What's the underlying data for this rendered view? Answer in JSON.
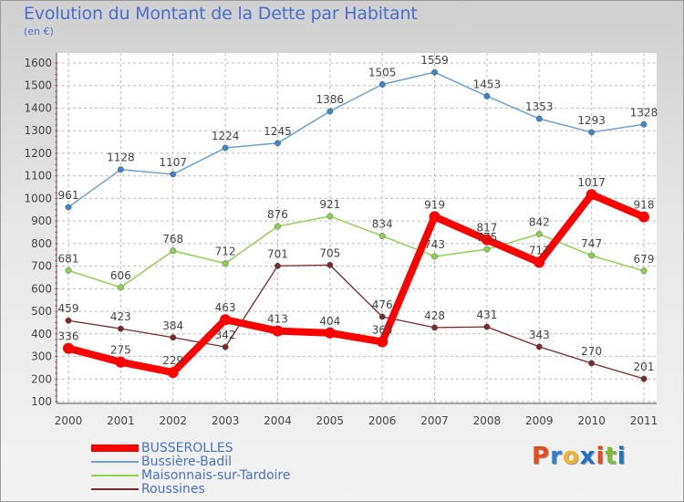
{
  "chart_data": {
    "type": "line",
    "title": "Evolution du Montant de la Dette par Habitant",
    "subtitle": "(en €)",
    "categories": [
      "2000",
      "2001",
      "2002",
      "2003",
      "2004",
      "2005",
      "2006",
      "2007",
      "2008",
      "2009",
      "2010",
      "2011"
    ],
    "yticks": [
      100,
      200,
      300,
      400,
      500,
      600,
      700,
      800,
      900,
      1000,
      1100,
      1200,
      1300,
      1400,
      1500,
      1600
    ],
    "ylim": [
      100,
      1600
    ],
    "grid": true,
    "legend_position": "bottom",
    "series": [
      {
        "name": "BUSSEROLLES",
        "color": "#ff0000",
        "width": 8,
        "marker_color": "#ff0000",
        "values": [
          336,
          275,
          229,
          463,
          413,
          404,
          365,
          919,
          817,
          717,
          1017,
          918
        ]
      },
      {
        "name": "Bussière-Badil",
        "color": "#6e9fd3",
        "width": 1.5,
        "marker_color": "#3a86c8",
        "values": [
          961,
          1128,
          1107,
          1224,
          1245,
          1386,
          1505,
          1559,
          1453,
          1353,
          1293,
          1328
        ]
      },
      {
        "name": "Maisonnais-sur-Tardoire",
        "color": "#92d050",
        "width": 1.5,
        "marker_color": "#8fd14f",
        "values": [
          681,
          606,
          768,
          712,
          876,
          921,
          834,
          743,
          775,
          842,
          747,
          679
        ]
      },
      {
        "name": "Roussines",
        "color": "#7a2a2a",
        "width": 1.3,
        "marker_color": "#7a2a2a",
        "values": [
          459,
          423,
          384,
          342,
          701,
          705,
          476,
          428,
          431,
          343,
          270,
          201
        ]
      }
    ],
    "data_labels": [
      [
        "336",
        "275",
        "229",
        "463",
        "413",
        "404",
        "365",
        "919",
        "817",
        "717",
        "1017",
        "918"
      ],
      [
        "961",
        "1128",
        "1107",
        "1224",
        "1245",
        "1386",
        "1505",
        "1559",
        "1453",
        "1353",
        "1293",
        "1328"
      ],
      [
        "681",
        "606",
        "768",
        "712",
        "876",
        "921",
        "834",
        "743",
        "775",
        "842",
        "747",
        "679"
      ],
      [
        "459",
        "423",
        "384",
        "342",
        "701",
        "705",
        "476",
        "428",
        "431",
        "343",
        "270",
        "201"
      ]
    ]
  },
  "logo": {
    "letters": [
      "P",
      "r",
      "o",
      "x",
      "i",
      "t",
      "i"
    ],
    "colors": [
      "#e84c1e",
      "#2f7fd0",
      "#f2b233",
      "#1e73c9",
      "#e84c1e",
      "#7cbd3b",
      "#1e73c9"
    ]
  }
}
